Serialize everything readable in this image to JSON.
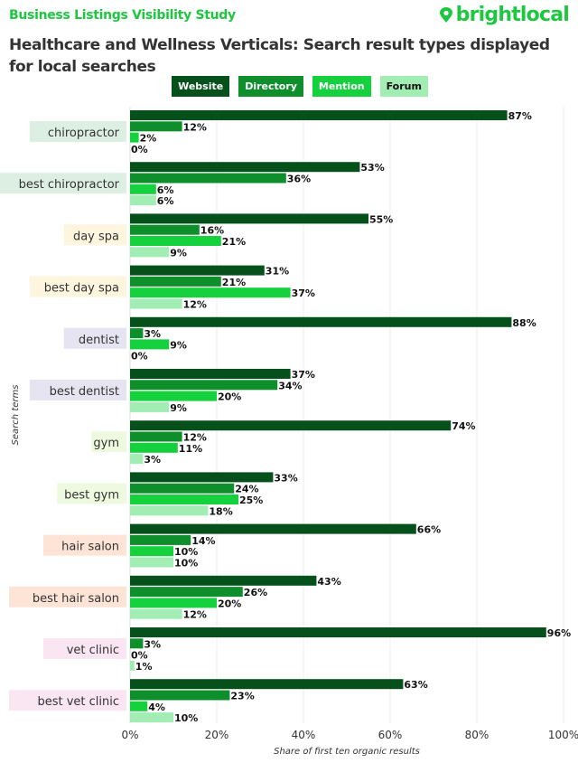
{
  "header": {
    "study": "Business Listings Visibility Study",
    "logo": "brightlocal",
    "logo_icon": "location-pin-heart-icon"
  },
  "chart_data": {
    "type": "bar",
    "orientation": "horizontal",
    "title": "Healthcare and Wellness Verticals: Search result types displayed for local searches",
    "xlabel": "Share of first ten organic results",
    "ylabel": "Search terms",
    "xlim": [
      0,
      100
    ],
    "xticks": [
      "0%",
      "20%",
      "40%",
      "60%",
      "80%",
      "100%"
    ],
    "grid": true,
    "legend_position": "top",
    "categories": [
      "chiropractor",
      "best chiropractor",
      "day spa",
      "best day spa",
      "dentist",
      "best dentist",
      "gym",
      "best gym",
      "hair salon",
      "best hair salon",
      "vet clinic",
      "best vet clinic"
    ],
    "category_colors": [
      "#dcefe2",
      "#dcefe2",
      "#fdf5de",
      "#fdf5de",
      "#e7e4f2",
      "#e7e4f2",
      "#eefadf",
      "#eefadf",
      "#fde4d7",
      "#fde4d7",
      "#fae6f3",
      "#fae6f3"
    ],
    "series": [
      {
        "name": "Website",
        "color": "#06511b",
        "text_color": "#ffffff",
        "values": [
          87,
          53,
          55,
          31,
          88,
          37,
          74,
          33,
          66,
          43,
          96,
          63
        ]
      },
      {
        "name": "Directory",
        "color": "#0e8f2c",
        "text_color": "#ffffff",
        "values": [
          12,
          36,
          16,
          21,
          3,
          34,
          12,
          24,
          14,
          26,
          3,
          23
        ]
      },
      {
        "name": "Mention",
        "color": "#15d13e",
        "text_color": "#ffffff",
        "values": [
          2,
          6,
          21,
          37,
          9,
          20,
          11,
          25,
          10,
          20,
          0,
          4
        ]
      },
      {
        "name": "Forum",
        "color": "#a2edb4",
        "text_color": "#111111",
        "values": [
          0,
          6,
          9,
          12,
          0,
          9,
          3,
          18,
          10,
          12,
          1,
          10
        ]
      }
    ]
  }
}
